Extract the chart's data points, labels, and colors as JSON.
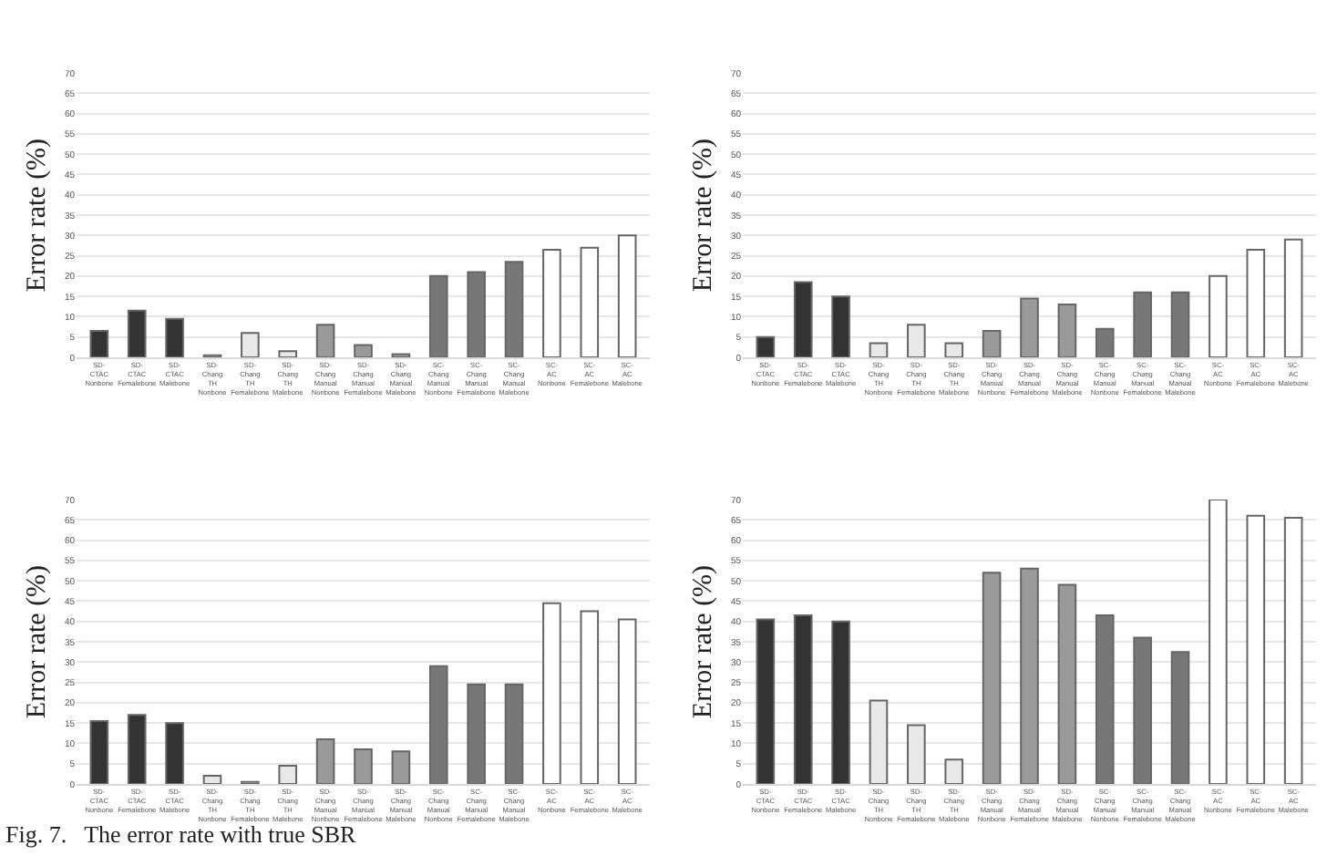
{
  "chart_data": [
    {
      "type": "bar",
      "ylabel": "Error rate (%)",
      "categories": [
        "SD-CTAC Nonbone",
        "SD-CTAC Femalebone",
        "SD-CTAC Malebone",
        "SD-Chang TH Nonbone",
        "SD-Chang TH Femalebone",
        "SD-Chang TH Malebone",
        "SD-Chang Manual Nonbone",
        "SD-Chang Manual Femalebone",
        "SD-Chang Manual Malebone",
        "SC-Chang Manual Nonbone",
        "SC-Chang Manual Femalebone",
        "SC-Chang Manual Malebone",
        "SC-AC Nonbone",
        "SC-AC Femalebone",
        "SC-AC Malebone"
      ],
      "values": [
        6.5,
        11.5,
        9.5,
        0.5,
        6,
        1.5,
        8,
        3,
        0.8,
        20,
        21,
        23.5,
        26.5,
        27,
        30
      ],
      "colors": [
        "#333333",
        "#333333",
        "#333333",
        "#e8e8e8",
        "#e8e8e8",
        "#e8e8e8",
        "#9a9a9a",
        "#9a9a9a",
        "#9a9a9a",
        "#777777",
        "#777777",
        "#777777",
        "#ffffff",
        "#ffffff",
        "#ffffff"
      ],
      "ylim": [
        0,
        70
      ],
      "yticks": [
        0,
        5,
        10,
        15,
        20,
        25,
        30,
        35,
        40,
        45,
        50,
        55,
        60,
        65,
        70
      ],
      "grid": "y",
      "annotations": [
        "Fig. 7.   The error rate with true SBR"
      ]
    },
    {
      "type": "bar",
      "ylabel": "Error rate (%)",
      "categories": [
        "SD-CTAC Nonbone",
        "SD-CTAC Femalebone",
        "SD-CTAC Malebone",
        "SD-Chang TH Nonbone",
        "SD-Chang TH Femalebone",
        "SD-Chang TH Malebone",
        "SD-Chang Manual Nonbone",
        "SD-Chang Manual Femalebone",
        "SD-Chang Manual Malebone",
        "SC-Chang Manual Nonbone",
        "SC-Chang Manual Femalebone",
        "SC-Chang Manual Malebone",
        "SC-AC Nonbone",
        "SC-AC Femalebone",
        "SC-AC Malebone"
      ],
      "values": [
        5,
        18.5,
        15,
        3.5,
        8,
        3.5,
        6.5,
        14.5,
        13,
        7,
        16,
        16,
        20,
        26.5,
        29
      ],
      "colors": [
        "#333333",
        "#333333",
        "#333333",
        "#e8e8e8",
        "#e8e8e8",
        "#e8e8e8",
        "#9a9a9a",
        "#9a9a9a",
        "#9a9a9a",
        "#777777",
        "#777777",
        "#777777",
        "#ffffff",
        "#ffffff",
        "#ffffff"
      ],
      "ylim": [
        0,
        70
      ],
      "yticks": [
        0,
        5,
        10,
        15,
        20,
        25,
        30,
        35,
        40,
        45,
        50,
        55,
        60,
        65,
        70
      ],
      "grid": "y"
    },
    {
      "type": "bar",
      "ylabel": "Error rate (%)",
      "categories": [
        "SD-CTAC Nonbone",
        "SD-CTAC Femalebone",
        "SD-CTAC Malebone",
        "SD-Chang TH Nonbone",
        "SD-Chang TH Femalebone",
        "SD-Chang TH Malebone",
        "SD-Chang Manual Nonbone",
        "SD-Chang Manual Femalebone",
        "SD-Chang Manual Malebone",
        "SC-Chang Manual Nonbone",
        "SC-Chang Manual Femalebone",
        "SC-Chang Manual Malebone",
        "SC-AC Nonbone",
        "SC-AC Femalebone",
        "SC-AC Malebone"
      ],
      "values": [
        15.5,
        17,
        15,
        2,
        0.5,
        4.5,
        11,
        8.5,
        8,
        29,
        24.5,
        24.5,
        44.5,
        42.5,
        40.5
      ],
      "colors": [
        "#333333",
        "#333333",
        "#333333",
        "#e8e8e8",
        "#e8e8e8",
        "#e8e8e8",
        "#9a9a9a",
        "#9a9a9a",
        "#9a9a9a",
        "#777777",
        "#777777",
        "#777777",
        "#ffffff",
        "#ffffff",
        "#ffffff"
      ],
      "ylim": [
        0,
        70
      ],
      "yticks": [
        0,
        5,
        10,
        15,
        20,
        25,
        30,
        35,
        40,
        45,
        50,
        55,
        60,
        65,
        70
      ],
      "grid": "y"
    },
    {
      "type": "bar",
      "ylabel": "Error rate (%)",
      "categories": [
        "SD-CTAC Nonbone",
        "SD-CTAC Femalebone",
        "SD-CTAC Malebone",
        "SD-Chang TH Nonbone",
        "SD-Chang TH Femalebone",
        "SD-Chang TH Malebone",
        "SD-Chang Manual Nonbone",
        "SD-Chang Manual Femalebone",
        "SD-Chang Manual Malebone",
        "SC-Chang Manual Nonbone",
        "SC-Chang Manual Femalebone",
        "SC-Chang Manual Malebone",
        "SC-AC Nonbone",
        "SC-AC Femalebone",
        "SC-AC Malebone"
      ],
      "values": [
        40.5,
        41.5,
        40,
        20.5,
        14.5,
        6,
        52,
        53,
        49,
        41.5,
        36,
        32.5,
        70,
        66,
        65.5
      ],
      "colors": [
        "#333333",
        "#333333",
        "#333333",
        "#e8e8e8",
        "#e8e8e8",
        "#e8e8e8",
        "#9a9a9a",
        "#9a9a9a",
        "#9a9a9a",
        "#777777",
        "#777777",
        "#777777",
        "#ffffff",
        "#ffffff",
        "#ffffff"
      ],
      "ylim": [
        0,
        70
      ],
      "yticks": [
        0,
        5,
        10,
        15,
        20,
        25,
        30,
        35,
        40,
        45,
        50,
        55,
        60,
        65,
        70
      ],
      "grid": "y"
    }
  ]
}
